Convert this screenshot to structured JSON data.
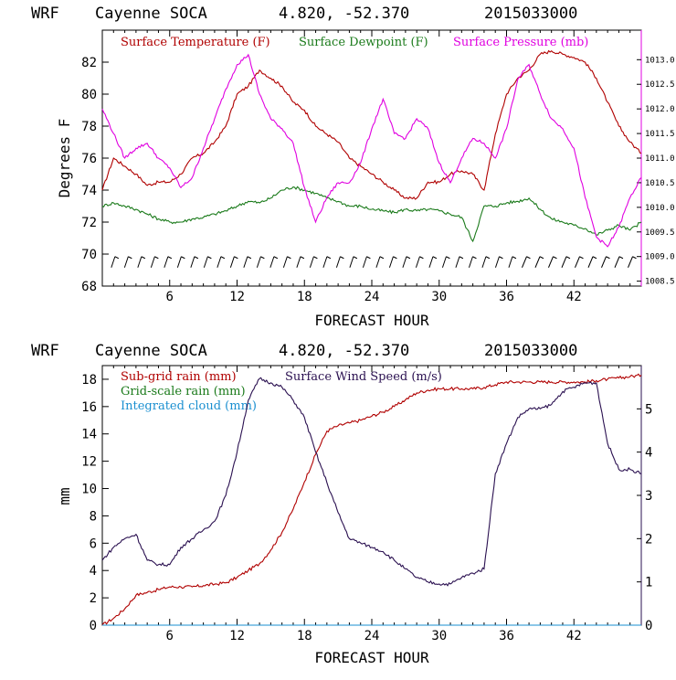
{
  "chart_data": [
    {
      "type": "line",
      "header": {
        "model": "WRF",
        "station": "Cayenne SOCA",
        "coords": "4.820, -52.370",
        "run": "2015033000"
      },
      "xlabel": "FORECAST HOUR",
      "ylabel": "Degrees F",
      "xlim": [
        0,
        48
      ],
      "ylim": [
        68,
        84
      ],
      "y2lim": [
        1008.4,
        1013.6
      ],
      "x_ticks": [
        6,
        12,
        18,
        24,
        30,
        36,
        42
      ],
      "y_ticks": [
        68,
        70,
        72,
        74,
        76,
        78,
        80,
        82
      ],
      "y2_ticks": [
        "1008.5",
        "1009.0",
        "1009.5",
        "1010.0",
        "1010.5",
        "1011.0",
        "1011.5",
        "1012.0",
        "1012.5",
        "1013.0"
      ],
      "legend": [
        "Surface Temperature (F)",
        "Surface Dewpoint (F)",
        "Surface Pressure (mb)"
      ],
      "colors": {
        "temperature": "#b00000",
        "dewpoint": "#1a7a1a",
        "pressure": "#e000e0",
        "wind": "#000000"
      },
      "series": [
        {
          "name": "Surface Temperature (F)",
          "axis": "left",
          "x": [
            0,
            1,
            2,
            3,
            4,
            5,
            6,
            7,
            8,
            9,
            10,
            11,
            12,
            13,
            14,
            15,
            16,
            17,
            18,
            19,
            20,
            21,
            22,
            23,
            24,
            25,
            26,
            27,
            28,
            29,
            30,
            31,
            32,
            33,
            34,
            35,
            36,
            37,
            38,
            39,
            40,
            41,
            42,
            43,
            44,
            45,
            46,
            47,
            48
          ],
          "values": [
            74.0,
            76.0,
            75.5,
            75.0,
            74.3,
            74.5,
            74.5,
            75.0,
            76.0,
            76.3,
            77.0,
            78.0,
            80.0,
            80.5,
            81.5,
            81.0,
            80.5,
            79.5,
            79.0,
            78.0,
            77.5,
            77.0,
            76.0,
            75.5,
            75.0,
            74.5,
            74.0,
            73.5,
            73.5,
            74.5,
            74.5,
            75.0,
            75.2,
            75.0,
            74.0,
            77.5,
            80.0,
            81.0,
            81.5,
            82.5,
            82.7,
            82.5,
            82.3,
            82.0,
            81.0,
            79.5,
            78.0,
            77.0,
            76.3
          ]
        },
        {
          "name": "Surface Dewpoint (F)",
          "axis": "left",
          "x": [
            0,
            1,
            2,
            3,
            4,
            5,
            6,
            7,
            8,
            9,
            10,
            11,
            12,
            13,
            14,
            15,
            16,
            17,
            18,
            19,
            20,
            21,
            22,
            23,
            24,
            25,
            26,
            27,
            28,
            29,
            30,
            31,
            32,
            33,
            34,
            35,
            36,
            37,
            38,
            39,
            40,
            41,
            42,
            43,
            44,
            45,
            46,
            47,
            48
          ],
          "values": [
            73.0,
            73.2,
            73.0,
            72.8,
            72.5,
            72.2,
            72.0,
            72.0,
            72.2,
            72.3,
            72.5,
            72.7,
            73.0,
            73.3,
            73.2,
            73.5,
            74.0,
            74.2,
            74.0,
            73.8,
            73.5,
            73.3,
            73.0,
            73.0,
            72.8,
            72.7,
            72.6,
            72.8,
            72.7,
            72.8,
            72.7,
            72.5,
            72.3,
            70.8,
            73.0,
            73.0,
            73.2,
            73.3,
            73.5,
            72.8,
            72.2,
            72.0,
            71.8,
            71.6,
            71.2,
            71.5,
            71.8,
            71.5,
            72.0
          ]
        },
        {
          "name": "Surface Pressure (mb)",
          "axis": "right",
          "x": [
            0,
            1,
            2,
            3,
            4,
            5,
            6,
            7,
            8,
            9,
            10,
            11,
            12,
            13,
            14,
            15,
            16,
            17,
            18,
            19,
            20,
            21,
            22,
            23,
            24,
            25,
            26,
            27,
            28,
            29,
            30,
            31,
            32,
            33,
            34,
            35,
            36,
            37,
            38,
            39,
            40,
            41,
            42,
            43,
            44,
            45,
            46,
            47,
            48
          ],
          "values": [
            1012.0,
            1011.5,
            1011.0,
            1011.2,
            1011.3,
            1011.0,
            1010.8,
            1010.4,
            1010.6,
            1011.2,
            1011.8,
            1012.4,
            1012.9,
            1013.1,
            1012.3,
            1011.8,
            1011.6,
            1011.3,
            1010.4,
            1009.7,
            1010.2,
            1010.5,
            1010.5,
            1010.9,
            1011.6,
            1012.2,
            1011.5,
            1011.4,
            1011.8,
            1011.6,
            1010.9,
            1010.5,
            1011.0,
            1011.4,
            1011.3,
            1011.0,
            1011.6,
            1012.6,
            1012.9,
            1012.3,
            1011.8,
            1011.6,
            1011.2,
            1010.2,
            1009.4,
            1009.2,
            1009.6,
            1010.2,
            1010.6
          ]
        }
      ],
      "wind_barbs": {
        "label": "wind barbs (no legend)",
        "count": 40
      }
    },
    {
      "type": "line",
      "header": {
        "model": "WRF",
        "station": "Cayenne SOCA",
        "coords": "4.820, -52.370",
        "run": "2015033000"
      },
      "xlabel": "FORECAST HOUR",
      "ylabel": "mm",
      "xlim": [
        0,
        48
      ],
      "ylim": [
        0,
        19
      ],
      "y2lim": [
        0,
        6
      ],
      "x_ticks": [
        6,
        12,
        18,
        24,
        30,
        36,
        42
      ],
      "y_ticks": [
        0,
        2,
        4,
        6,
        8,
        10,
        12,
        14,
        16,
        18
      ],
      "y2_ticks": [
        0,
        1,
        2,
        3,
        4,
        5
      ],
      "legend": [
        "Sub-grid rain (mm)",
        "Grid-scale rain (mm)",
        "Integrated cloud (mm)",
        "Surface Wind Speed (m/s)"
      ],
      "colors": {
        "subgrid": "#b00000",
        "gridscale": "#1a7a1a",
        "cloud": "#1a8fd0",
        "wind": "#2a1050"
      },
      "series": [
        {
          "name": "Sub-grid rain (mm)",
          "axis": "left",
          "x": [
            0,
            1,
            2,
            3,
            4,
            5,
            6,
            7,
            8,
            9,
            10,
            11,
            12,
            13,
            14,
            15,
            16,
            17,
            18,
            19,
            20,
            21,
            22,
            23,
            24,
            25,
            26,
            27,
            28,
            29,
            30,
            31,
            32,
            33,
            34,
            35,
            36,
            37,
            38,
            39,
            40,
            41,
            42,
            43,
            44,
            45,
            46,
            47,
            48
          ],
          "values": [
            0.0,
            0.5,
            1.2,
            2.2,
            2.4,
            2.6,
            2.8,
            2.8,
            2.8,
            2.9,
            3.0,
            3.1,
            3.5,
            4.0,
            4.5,
            5.5,
            6.8,
            8.5,
            10.5,
            12.5,
            14.2,
            14.6,
            14.8,
            15.0,
            15.3,
            15.6,
            16.0,
            16.5,
            17.0,
            17.2,
            17.3,
            17.3,
            17.3,
            17.3,
            17.4,
            17.6,
            17.8,
            17.8,
            17.8,
            17.8,
            17.8,
            17.8,
            17.8,
            17.8,
            17.9,
            18.0,
            18.1,
            18.2,
            18.3
          ]
        },
        {
          "name": "Grid-scale rain (mm)",
          "axis": "left",
          "x": [
            0,
            48
          ],
          "values": [
            0,
            0
          ]
        },
        {
          "name": "Integrated cloud (mm)",
          "axis": "left",
          "x": [
            0,
            48
          ],
          "values": [
            0,
            0
          ]
        },
        {
          "name": "Surface Wind Speed (m/s)",
          "axis": "right",
          "x": [
            0,
            1,
            2,
            3,
            4,
            5,
            6,
            7,
            8,
            9,
            10,
            11,
            12,
            13,
            14,
            15,
            16,
            17,
            18,
            19,
            20,
            21,
            22,
            23,
            24,
            25,
            26,
            27,
            28,
            29,
            30,
            31,
            32,
            33,
            34,
            35,
            36,
            37,
            38,
            39,
            40,
            41,
            42,
            43,
            44,
            45,
            46,
            47,
            48
          ],
          "values": [
            1.5,
            1.8,
            2.0,
            2.1,
            1.5,
            1.4,
            1.4,
            1.8,
            2.0,
            2.2,
            2.4,
            3.0,
            4.0,
            5.2,
            5.7,
            5.6,
            5.5,
            5.2,
            4.8,
            4.0,
            3.3,
            2.6,
            2.0,
            1.9,
            1.8,
            1.7,
            1.5,
            1.3,
            1.1,
            1.0,
            0.95,
            0.95,
            1.1,
            1.2,
            1.3,
            3.5,
            4.2,
            4.8,
            5.0,
            5.0,
            5.1,
            5.4,
            5.5,
            5.6,
            5.6,
            4.2,
            3.6,
            3.6,
            3.5
          ]
        }
      ]
    }
  ]
}
